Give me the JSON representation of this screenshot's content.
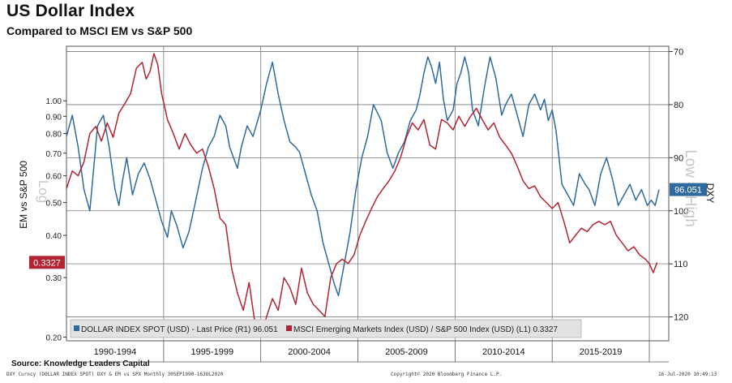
{
  "title": "US Dollar Index",
  "subtitle": "Compared to MSCI EM vs S&P 500",
  "source": "Source: Knowledge Leaders Capital",
  "footer": {
    "left": "DXY Curncy (DOLLAR INDEX SPOT) DXY & EM vs SPX  Monthly 30SEP1990-16JUL2020",
    "center": "Copyright© 2020 Bloomberg Finance L.P.",
    "right": "16-Jul-2020 10:49:13"
  },
  "chart_data": {
    "type": "line",
    "x_range": [
      1990.0,
      2021.0
    ],
    "x_tick_labels": [
      "1990-1994",
      "1995-1999",
      "2000-2004",
      "2005-2009",
      "2010-2014",
      "2015-2019"
    ],
    "left_axis": {
      "label": "EM vs S&P 500",
      "annotation": "Log",
      "scale": "log",
      "range": [
        0.195,
        1.45
      ],
      "ticks": [
        0.2,
        0.3,
        0.4,
        0.5,
        0.6,
        0.7,
        0.8,
        0.9,
        1.0
      ],
      "tick_labels": [
        "0.20",
        "0.30",
        "0.40",
        "0.50",
        "0.60",
        "0.70",
        "0.80",
        "0.90",
        "1.00"
      ]
    },
    "right_axis": {
      "label": "DXY",
      "annotation": "Low = High",
      "inverted": true,
      "range": [
        69,
        124.5
      ],
      "ticks": [
        70,
        80,
        90,
        100,
        110,
        120
      ]
    },
    "series": [
      {
        "name": "DOLLAR INDEX SPOT (USD) - Last Price (R1) 96.051",
        "axis": "right",
        "color": "#2e6a9c",
        "last_label": "96.051",
        "x": [
          1990.0,
          1990.3,
          1990.6,
          1990.9,
          1991.2,
          1991.4,
          1991.6,
          1991.9,
          1992.2,
          1992.5,
          1992.7,
          1992.9,
          1993.1,
          1993.4,
          1993.7,
          1994.0,
          1994.3,
          1994.6,
          1994.9,
          1995.2,
          1995.4,
          1995.7,
          1996.0,
          1996.3,
          1996.6,
          1997.0,
          1997.3,
          1997.6,
          1997.9,
          1998.2,
          1998.4,
          1998.6,
          1998.8,
          1999.0,
          1999.3,
          1999.6,
          2000.0,
          2000.3,
          2000.6,
          2000.9,
          2001.2,
          2001.5,
          2001.8,
          2002.0,
          2002.3,
          2002.6,
          2002.9,
          2003.2,
          2003.5,
          2003.8,
          2004.0,
          2004.3,
          2004.6,
          2004.9,
          2005.2,
          2005.5,
          2005.8,
          2006.2,
          2006.5,
          2006.8,
          2007.1,
          2007.4,
          2007.7,
          2008.0,
          2008.2,
          2008.4,
          2008.6,
          2008.8,
          2009.0,
          2009.2,
          2009.4,
          2009.6,
          2009.9,
          2010.1,
          2010.3,
          2010.5,
          2010.7,
          2010.9,
          2011.2,
          2011.5,
          2011.8,
          2012.1,
          2012.4,
          2012.6,
          2012.9,
          2013.2,
          2013.5,
          2013.8,
          2014.1,
          2014.4,
          2014.6,
          2014.8,
          2015.0,
          2015.2,
          2015.5,
          2015.8,
          2016.1,
          2016.4,
          2016.7,
          2016.9,
          2017.2,
          2017.5,
          2017.8,
          2018.1,
          2018.4,
          2018.7,
          2019.0,
          2019.3,
          2019.6,
          2019.9,
          2020.1,
          2020.3,
          2020.5
        ],
        "values": [
          86,
          82,
          88,
          96,
          100,
          92,
          84,
          82,
          88,
          96,
          99,
          94,
          90,
          97,
          93,
          91,
          94,
          98,
          102,
          105,
          100,
          103,
          107,
          104,
          99,
          92,
          88,
          86,
          82,
          84,
          88,
          90,
          92,
          88,
          84,
          86,
          81,
          76,
          72,
          78,
          83,
          87,
          88,
          89,
          93,
          97,
          100,
          106,
          110,
          114,
          116,
          110,
          104,
          96,
          90,
          86,
          80,
          83,
          89,
          92,
          89,
          87,
          83,
          81,
          78,
          74,
          71,
          73,
          76,
          72,
          79,
          83,
          81,
          76,
          74,
          71,
          74,
          81,
          84,
          77,
          71,
          75,
          82,
          80,
          78,
          82,
          86,
          80,
          78,
          81,
          79,
          83,
          81,
          85,
          95,
          97,
          99,
          93,
          95,
          96,
          99,
          93,
          90,
          94,
          99,
          97,
          95,
          98,
          96,
          99,
          98,
          99,
          96
        ]
      },
      {
        "name": "MSCI Emerging Markets Index (USD) / S&P 500 Index (USD) (L1) 0.3327",
        "axis": "left",
        "color": "#b22433",
        "last_label": "0.3327",
        "x": [
          1990.0,
          1990.3,
          1990.6,
          1990.9,
          1991.2,
          1991.5,
          1991.8,
          1992.1,
          1992.4,
          1992.7,
          1993.0,
          1993.3,
          1993.6,
          1993.9,
          1994.1,
          1994.3,
          1994.5,
          1994.7,
          1994.9,
          1995.2,
          1995.5,
          1995.8,
          1996.1,
          1996.4,
          1996.7,
          1997.0,
          1997.3,
          1997.6,
          1997.9,
          1998.2,
          1998.5,
          1998.8,
          1999.1,
          1999.4,
          1999.7,
          2000.0,
          2000.3,
          2000.6,
          2000.9,
          2001.2,
          2001.5,
          2001.8,
          2002.1,
          2002.4,
          2002.7,
          2003.0,
          2003.3,
          2003.6,
          2003.9,
          2004.2,
          2004.5,
          2004.8,
          2005.1,
          2005.4,
          2005.7,
          2006.0,
          2006.3,
          2006.6,
          2006.9,
          2007.2,
          2007.5,
          2007.8,
          2008.1,
          2008.4,
          2008.7,
          2009.0,
          2009.3,
          2009.6,
          2009.9,
          2010.2,
          2010.5,
          2010.8,
          2011.1,
          2011.4,
          2011.7,
          2012.0,
          2012.3,
          2012.6,
          2012.9,
          2013.2,
          2013.5,
          2013.8,
          2014.1,
          2014.4,
          2014.7,
          2015.0,
          2015.3,
          2015.6,
          2015.9,
          2016.2,
          2016.5,
          2016.8,
          2017.1,
          2017.4,
          2017.7,
          2018.0,
          2018.3,
          2018.6,
          2018.9,
          2019.2,
          2019.5,
          2019.8,
          2020.0,
          2020.2,
          2020.4
        ],
        "values": [
          0.55,
          0.62,
          0.6,
          0.66,
          0.8,
          0.84,
          0.76,
          0.86,
          0.78,
          0.92,
          0.98,
          1.05,
          1.25,
          1.3,
          1.16,
          1.22,
          1.38,
          1.28,
          1.05,
          0.88,
          0.8,
          0.72,
          0.8,
          0.74,
          0.7,
          0.72,
          0.64,
          0.55,
          0.45,
          0.43,
          0.32,
          0.27,
          0.24,
          0.29,
          0.22,
          0.2,
          0.23,
          0.26,
          0.24,
          0.3,
          0.28,
          0.25,
          0.32,
          0.27,
          0.25,
          0.24,
          0.23,
          0.3,
          0.33,
          0.34,
          0.33,
          0.35,
          0.4,
          0.44,
          0.48,
          0.52,
          0.55,
          0.58,
          0.62,
          0.68,
          0.78,
          0.86,
          0.82,
          0.88,
          0.74,
          0.72,
          0.88,
          0.86,
          0.82,
          0.9,
          0.84,
          0.9,
          0.95,
          0.88,
          0.82,
          0.86,
          0.78,
          0.74,
          0.7,
          0.64,
          0.58,
          0.55,
          0.56,
          0.52,
          0.5,
          0.48,
          0.5,
          0.44,
          0.38,
          0.4,
          0.42,
          0.41,
          0.43,
          0.44,
          0.43,
          0.44,
          0.4,
          0.38,
          0.36,
          0.37,
          0.35,
          0.34,
          0.33,
          0.31,
          0.3327
        ]
      }
    ]
  }
}
